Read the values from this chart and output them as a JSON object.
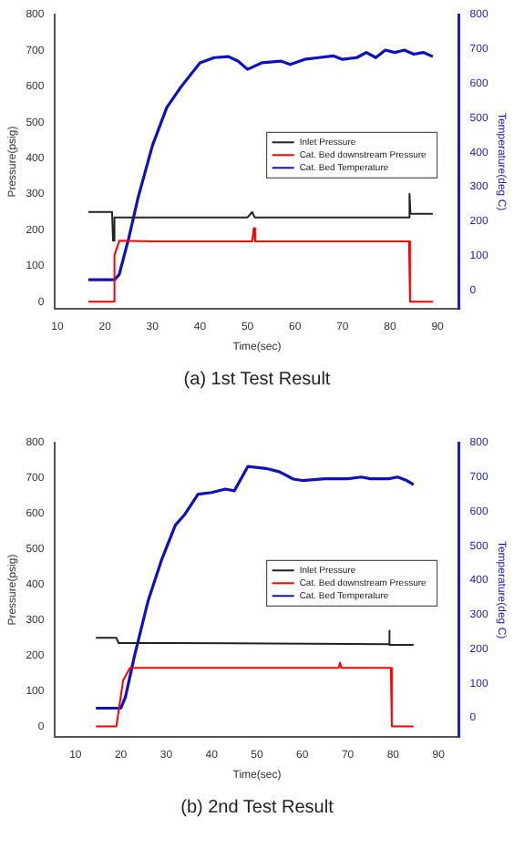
{
  "chart_data": [
    {
      "type": "line",
      "xlabel": "Time(sec)",
      "ylabel": "Pressure(psig)",
      "y2label": "Temperature(deg C)",
      "xlim": [
        9.5,
        94.5
      ],
      "xticks": [
        10,
        20,
        30,
        40,
        50,
        60,
        70,
        80,
        90
      ],
      "ylim": [
        -20,
        800
      ],
      "yticks": [
        0,
        100,
        200,
        300,
        400,
        500,
        600,
        700,
        800
      ],
      "y2lim": [
        -55,
        800
      ],
      "y2ticks": [
        0,
        100,
        200,
        300,
        400,
        500,
        600,
        700,
        800
      ],
      "grid": false,
      "legend": "center right",
      "marker": "none",
      "line_style": "solid",
      "annotations": [
        "(a)  1st  Test  Result"
      ],
      "series": [
        {
          "name": "Inlet Pressure",
          "color": "#222222",
          "x": [
            16.5,
            21.5,
            21.7,
            22,
            22.3,
            50,
            51,
            51.5,
            84,
            84.1,
            84.3,
            89
          ],
          "values": [
            250,
            250,
            170,
            235,
            235,
            235,
            250,
            235,
            235,
            300,
            245,
            245
          ]
        },
        {
          "name": "Cat. Bed downstream Pressure",
          "color": "#ff0000",
          "x": [
            16.5,
            21.8,
            22,
            23,
            30,
            51,
            51.3,
            51.6,
            84,
            84.2,
            89
          ],
          "values": [
            0,
            0,
            130,
            170,
            168,
            168,
            205,
            168,
            168,
            0,
            0
          ]
        },
        {
          "name": "Cat. Bed Temperature",
          "color": "#1010c0",
          "axis": "y2",
          "x": [
            16.5,
            22,
            23,
            25,
            27,
            30,
            33,
            36,
            40,
            43,
            46,
            48,
            50,
            53,
            57,
            59,
            62,
            65,
            68,
            70,
            73,
            75,
            77,
            79,
            81,
            83,
            85,
            87,
            89
          ],
          "values": [
            30,
            30,
            45,
            150,
            270,
            420,
            530,
            590,
            660,
            675,
            678,
            665,
            641,
            660,
            665,
            655,
            670,
            675,
            680,
            670,
            675,
            690,
            675,
            697,
            690,
            697,
            685,
            690,
            678
          ]
        }
      ]
    },
    {
      "type": "line",
      "xlabel": "Time(sec)",
      "ylabel": "Pressure(psig)",
      "y2label": "Temperature(deg C)",
      "xlim": [
        5.5,
        94.5
      ],
      "xticks": [
        10,
        20,
        30,
        40,
        50,
        60,
        70,
        80,
        90
      ],
      "ylim": [
        -30,
        800
      ],
      "yticks": [
        0,
        100,
        200,
        300,
        400,
        500,
        600,
        700,
        800
      ],
      "y2lim": [
        -56,
        800
      ],
      "y2ticks": [
        0,
        100,
        200,
        300,
        400,
        500,
        600,
        700,
        800
      ],
      "grid": false,
      "legend": "center right",
      "marker": "none",
      "line_style": "solid",
      "annotations": [
        "(b)  2nd  Test  Result"
      ],
      "series": [
        {
          "name": "Inlet Pressure",
          "color": "#222222",
          "x": [
            14.5,
            19,
            19.5,
            30,
            79,
            79.1,
            79.3,
            84.5
          ],
          "values": [
            250,
            250,
            235,
            235,
            232,
            270,
            230,
            230
          ]
        },
        {
          "name": "Cat. Bed downstream Pressure",
          "color": "#ff0000",
          "x": [
            14.5,
            19,
            20.5,
            22,
            50,
            68,
            68.3,
            68.6,
            79.5,
            79.7,
            84.5
          ],
          "values": [
            0,
            0,
            130,
            165,
            165,
            165,
            180,
            165,
            165,
            0,
            0
          ]
        },
        {
          "name": "Cat. Bed Temperature",
          "color": "#1010c0",
          "axis": "y2",
          "x": [
            14.5,
            20,
            21,
            23,
            26,
            29,
            32,
            34,
            37,
            40,
            43,
            45,
            48,
            52,
            55,
            58,
            60,
            65,
            70,
            73,
            75,
            79,
            81,
            83,
            84.5
          ],
          "values": [
            28,
            28,
            60,
            180,
            340,
            460,
            560,
            590,
            650,
            655,
            665,
            660,
            731,
            725,
            715,
            694,
            690,
            695,
            695,
            700,
            695,
            695,
            700,
            690,
            678
          ]
        }
      ]
    }
  ]
}
